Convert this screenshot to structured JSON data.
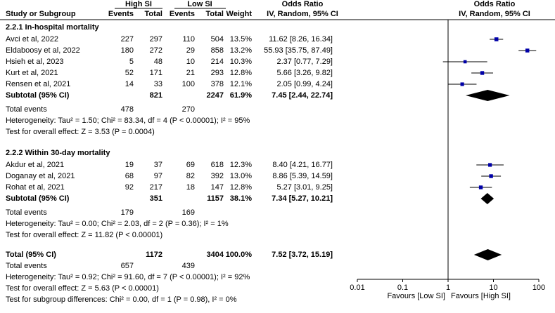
{
  "chart_data": {
    "type": "forest",
    "header": {
      "group1": "High SI",
      "group2": "Low SI",
      "left_title": "Odds Ratio",
      "right_title": "Odds Ratio",
      "study": "Study or Subgroup",
      "events1": "Events",
      "total1": "Total",
      "events2": "Events",
      "total2": "Total",
      "weight": "Weight",
      "left_method": "IV, Random, 95% CI",
      "right_method": "IV, Random, 95% CI"
    },
    "subgroups": [
      {
        "title": "2.2.1 In-hospital mortality",
        "studies": [
          {
            "name": "Avci et al, 2022",
            "e1": 227,
            "t1": 297,
            "e2": 110,
            "t2": 504,
            "weight": 13.5,
            "weight_label": "13.5%",
            "ci_label": "11.62 [8.26, 16.34]",
            "or": 11.62,
            "lo": 8.26,
            "hi": 16.34
          },
          {
            "name": "Eldaboosy et al, 2022",
            "e1": 180,
            "t1": 272,
            "e2": 29,
            "t2": 858,
            "weight": 13.2,
            "weight_label": "13.2%",
            "ci_label": "55.93 [35.75, 87.49]",
            "or": 55.93,
            "lo": 35.75,
            "hi": 87.49
          },
          {
            "name": "Hsieh et al, 2023",
            "e1": 5,
            "t1": 48,
            "e2": 10,
            "t2": 214,
            "weight": 10.3,
            "weight_label": "10.3%",
            "ci_label": "2.37 [0.77, 7.29]",
            "or": 2.37,
            "lo": 0.77,
            "hi": 7.29
          },
          {
            "name": "Kurt et al, 2021",
            "e1": 52,
            "t1": 171,
            "e2": 21,
            "t2": 293,
            "weight": 12.8,
            "weight_label": "12.8%",
            "ci_label": "5.66 [3.26, 9.82]",
            "or": 5.66,
            "lo": 3.26,
            "hi": 9.82
          },
          {
            "name": "Rensen et al, 2021",
            "e1": 14,
            "t1": 33,
            "e2": 100,
            "t2": 378,
            "weight": 12.1,
            "weight_label": "12.1%",
            "ci_label": "2.05 [0.99, 4.24]",
            "or": 2.05,
            "lo": 0.99,
            "hi": 4.24
          }
        ],
        "subtotal": {
          "name": "Subtotal (95% CI)",
          "t1": 821,
          "t2": 2247,
          "weight": 61.9,
          "weight_label": "61.9%",
          "ci_label": "7.45 [2.44, 22.74]",
          "or": 7.45,
          "lo": 2.44,
          "hi": 22.74
        },
        "events": {
          "name": "Total events",
          "e1": 478,
          "e2": 270
        },
        "heterogeneity": "Heterogeneity: Tau² = 1.50; Chi² = 83.34, df = 4 (P < 0.00001); I² = 95%",
        "overall": "Test for overall effect: Z = 3.53 (P = 0.0004)"
      },
      {
        "title": "2.2.2 Within 30-day mortality",
        "studies": [
          {
            "name": "Akdur et al, 2021",
            "e1": 19,
            "t1": 37,
            "e2": 69,
            "t2": 618,
            "weight": 12.3,
            "weight_label": "12.3%",
            "ci_label": "8.40 [4.21, 16.77]",
            "or": 8.4,
            "lo": 4.21,
            "hi": 16.77
          },
          {
            "name": "Doganay et al, 2021",
            "e1": 68,
            "t1": 97,
            "e2": 82,
            "t2": 392,
            "weight": 13.0,
            "weight_label": "13.0%",
            "ci_label": "8.86 [5.39, 14.59]",
            "or": 8.86,
            "lo": 5.39,
            "hi": 14.59
          },
          {
            "name": "Rohat et al, 2021",
            "e1": 92,
            "t1": 217,
            "e2": 18,
            "t2": 147,
            "weight": 12.8,
            "weight_label": "12.8%",
            "ci_label": "5.27 [3.01, 9.25]",
            "or": 5.27,
            "lo": 3.01,
            "hi": 9.25
          }
        ],
        "subtotal": {
          "name": "Subtotal (95% CI)",
          "t1": 351,
          "t2": 1157,
          "weight": 38.1,
          "weight_label": "38.1%",
          "ci_label": "7.34 [5.27, 10.21]",
          "or": 7.34,
          "lo": 5.27,
          "hi": 10.21
        },
        "events": {
          "name": "Total events",
          "e1": 179,
          "e2": 169
        },
        "heterogeneity": "Heterogeneity: Tau² = 0.00; Chi² = 2.03, df = 2 (P = 0.36); I² = 1%",
        "overall": "Test for overall effect: Z = 11.82 (P < 0.00001)"
      }
    ],
    "total": {
      "name": "Total (95% CI)",
      "t1": 1172,
      "t2": 3404,
      "weight": 100,
      "weight_label": "100.0%",
      "ci_label": "7.52 [3.72, 15.19]",
      "or": 7.52,
      "lo": 3.72,
      "hi": 15.19
    },
    "total_events": {
      "name": "Total events",
      "e1": 657,
      "e2": 439
    },
    "total_heterogeneity": "Heterogeneity: Tau² = 0.92; Chi² = 91.60, df = 7 (P < 0.00001); I² = 92%",
    "total_overall": "Test for overall effect: Z = 5.63 (P < 0.00001)",
    "subgroup_differences": "Test for subgroup differences: Chi² = 0.00, df = 1 (P = 0.98), I² = 0%",
    "xlim": [
      0.01,
      100
    ],
    "xticks": [
      0.01,
      0.1,
      1,
      10,
      100
    ],
    "log_scale": true,
    "favours_left": "Favours [Low SI]",
    "favours_right": "Favours [High SI]",
    "marker_color": "#0000a8",
    "diamond_color": "#000000"
  }
}
